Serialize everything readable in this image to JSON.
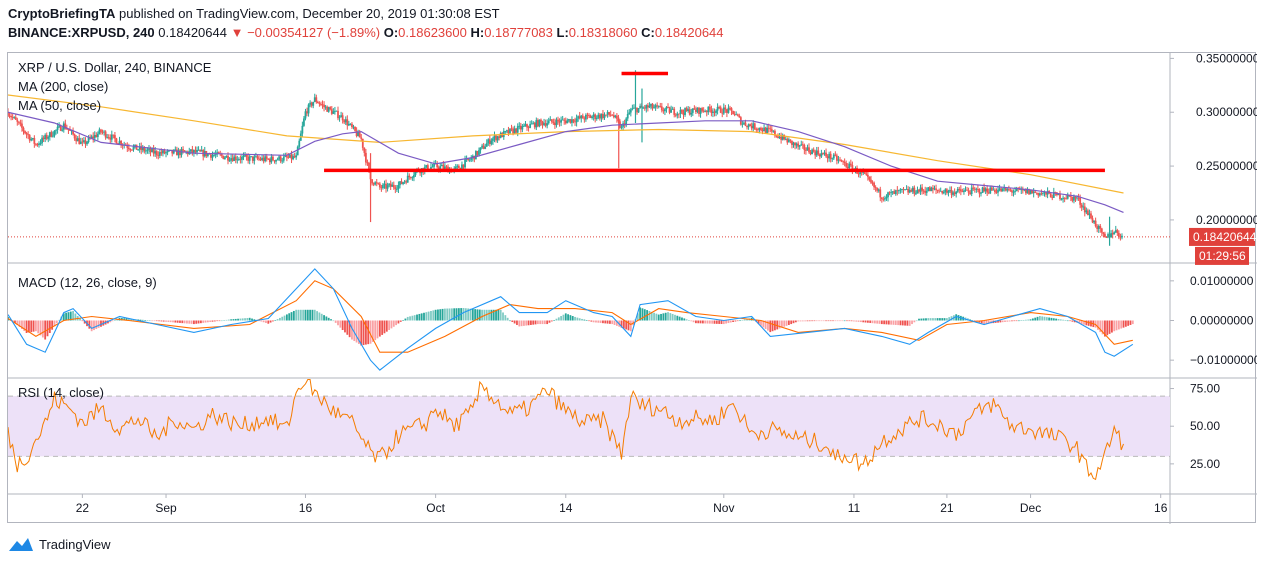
{
  "header": {
    "author": "CryptoBriefingTA",
    "published_text": "published on TradingView.com, December 20, 2019 01:30:08 EST",
    "symbol": "BINANCE:XRPUSD, 240",
    "price": "0.18420644",
    "change": "−0.00354127 (−1.89%)",
    "ohlc": [
      {
        "label": "O:",
        "value": "0.18623600"
      },
      {
        "label": "H:",
        "value": "0.18777083"
      },
      {
        "label": "L:",
        "value": "0.18318060"
      },
      {
        "label": "C:",
        "value": "0.18420644"
      }
    ]
  },
  "footer": {
    "brand": "TradingView"
  },
  "colors": {
    "up": "#26a69a",
    "down": "#ef5350",
    "ma200": "#f7b731",
    "ma50": "#7b5bc4",
    "macd": "#2196f3",
    "signal": "#ff6d00",
    "rsi": "#f57c00",
    "rsi_band": "#ede1f8",
    "annotation": "#ff0000",
    "price_line": "#e0413b"
  },
  "chart_data": [
    {
      "type": "candlestick",
      "title": "XRP / U.S. Dollar, 240, BINANCE",
      "indicators": [
        "MA (200, close)",
        "MA (50, close)"
      ],
      "y_ticks": [
        "0.35000000",
        "0.30000000",
        "0.25000000",
        "0.20000000"
      ],
      "y_tick_values": [
        0.35,
        0.3,
        0.25,
        0.2
      ],
      "ylim": [
        0.16,
        0.355
      ],
      "last_price_label": "0.18420644",
      "countdown_label": "01:29:56",
      "last_price": 0.18420644,
      "x_tick_labels": [
        "22",
        "Sep",
        "16",
        "Oct",
        "14",
        "Nov",
        "11",
        "21",
        "Dec",
        "16"
      ],
      "xlim_days": [
        0,
        125
      ],
      "x_tick_days": [
        8,
        17,
        32,
        46,
        60,
        77,
        91,
        101,
        110,
        124
      ],
      "price_anchors_day_value": [
        [
          0,
          0.3
        ],
        [
          3,
          0.27
        ],
        [
          6,
          0.288
        ],
        [
          8,
          0.27
        ],
        [
          10,
          0.282
        ],
        [
          13,
          0.268
        ],
        [
          16,
          0.262
        ],
        [
          20,
          0.263
        ],
        [
          24,
          0.258
        ],
        [
          28,
          0.256
        ],
        [
          31,
          0.258
        ],
        [
          32,
          0.3
        ],
        [
          33,
          0.312
        ],
        [
          34,
          0.305
        ],
        [
          36,
          0.295
        ],
        [
          38,
          0.275
        ],
        [
          39,
          0.238
        ],
        [
          40,
          0.23
        ],
        [
          42,
          0.232
        ],
        [
          44,
          0.246
        ],
        [
          46,
          0.25
        ],
        [
          48,
          0.246
        ],
        [
          50,
          0.258
        ],
        [
          52,
          0.275
        ],
        [
          54,
          0.282
        ],
        [
          57,
          0.29
        ],
        [
          60,
          0.292
        ],
        [
          62,
          0.295
        ],
        [
          65,
          0.298
        ],
        [
          66,
          0.285
        ],
        [
          67,
          0.302
        ],
        [
          69,
          0.305
        ],
        [
          72,
          0.3
        ],
        [
          75,
          0.302
        ],
        [
          77,
          0.302
        ],
        [
          78,
          0.3
        ],
        [
          79,
          0.29
        ],
        [
          82,
          0.282
        ],
        [
          85,
          0.268
        ],
        [
          89,
          0.257
        ],
        [
          92,
          0.242
        ],
        [
          94,
          0.222
        ],
        [
          96,
          0.226
        ],
        [
          99,
          0.228
        ],
        [
          102,
          0.226
        ],
        [
          106,
          0.228
        ],
        [
          110,
          0.226
        ],
        [
          115,
          0.22
        ],
        [
          117,
          0.196
        ],
        [
          118,
          0.182
        ],
        [
          119,
          0.19
        ],
        [
          120,
          0.184
        ]
      ],
      "ma200_day_value": [
        [
          0,
          0.316
        ],
        [
          10,
          0.305
        ],
        [
          20,
          0.292
        ],
        [
          30,
          0.278
        ],
        [
          40,
          0.272
        ],
        [
          50,
          0.278
        ],
        [
          60,
          0.282
        ],
        [
          70,
          0.284
        ],
        [
          80,
          0.282
        ],
        [
          90,
          0.27
        ],
        [
          100,
          0.255
        ],
        [
          110,
          0.242
        ],
        [
          120,
          0.225
        ]
      ],
      "ma50_day_value": [
        [
          0,
          0.3
        ],
        [
          5,
          0.29
        ],
        [
          10,
          0.272
        ],
        [
          20,
          0.262
        ],
        [
          30,
          0.26
        ],
        [
          33,
          0.273
        ],
        [
          36,
          0.28
        ],
        [
          38,
          0.282
        ],
        [
          40,
          0.272
        ],
        [
          42,
          0.262
        ],
        [
          46,
          0.252
        ],
        [
          50,
          0.258
        ],
        [
          55,
          0.27
        ],
        [
          60,
          0.282
        ],
        [
          65,
          0.288
        ],
        [
          70,
          0.29
        ],
        [
          75,
          0.292
        ],
        [
          80,
          0.292
        ],
        [
          85,
          0.282
        ],
        [
          90,
          0.268
        ],
        [
          95,
          0.25
        ],
        [
          100,
          0.236
        ],
        [
          105,
          0.232
        ],
        [
          110,
          0.228
        ],
        [
          115,
          0.222
        ],
        [
          118,
          0.214
        ],
        [
          120,
          0.207
        ]
      ],
      "annotations": [
        {
          "label": "resistance-line",
          "value": 0.246,
          "from_day": 34,
          "to_day": 118
        },
        {
          "label": "top-mark",
          "value": 0.336,
          "from_day": 66,
          "to_day": 71
        }
      ]
    },
    {
      "type": "line",
      "title": "MACD (12, 26, close, 9)",
      "y_ticks": [
        "0.01000000",
        "0.00000000",
        "−0.01000000"
      ],
      "y_tick_values": [
        0.01,
        0.0,
        -0.01
      ],
      "ylim": [
        -0.0145,
        0.0145
      ],
      "macd_day_value": [
        [
          0,
          0.0015
        ],
        [
          2,
          -0.006
        ],
        [
          4,
          -0.008
        ],
        [
          6,
          0.002
        ],
        [
          7,
          0.003
        ],
        [
          9,
          -0.002
        ],
        [
          12,
          0.001
        ],
        [
          16,
          -0.001
        ],
        [
          20,
          -0.003
        ],
        [
          24,
          -0.001
        ],
        [
          28,
          0.0005
        ],
        [
          31,
          0.008
        ],
        [
          33,
          0.013
        ],
        [
          35,
          0.008
        ],
        [
          37,
          -0.002
        ],
        [
          39,
          -0.01
        ],
        [
          40,
          -0.0125
        ],
        [
          43,
          -0.007
        ],
        [
          46,
          -0.002
        ],
        [
          49,
          0.002
        ],
        [
          53,
          0.006
        ],
        [
          55,
          0.002
        ],
        [
          58,
          0.002
        ],
        [
          60,
          0.005
        ],
        [
          63,
          0.002
        ],
        [
          65,
          0.001
        ],
        [
          67,
          -0.004
        ],
        [
          68,
          0.004
        ],
        [
          71,
          0.005
        ],
        [
          74,
          0.001
        ],
        [
          77,
          0.0
        ],
        [
          80,
          0.001
        ],
        [
          82,
          -0.004
        ],
        [
          86,
          -0.003
        ],
        [
          90,
          -0.002
        ],
        [
          94,
          -0.004
        ],
        [
          97,
          -0.006
        ],
        [
          99,
          -0.003
        ],
        [
          102,
          0.001
        ],
        [
          105,
          -0.001
        ],
        [
          108,
          0.001
        ],
        [
          111,
          0.003
        ],
        [
          114,
          0.001
        ],
        [
          117,
          -0.003
        ],
        [
          118,
          -0.008
        ],
        [
          119,
          -0.009
        ],
        [
          121,
          -0.006
        ]
      ],
      "signal_day_value": [
        [
          0,
          0.0005
        ],
        [
          3,
          -0.004
        ],
        [
          6,
          0.0
        ],
        [
          9,
          0.001
        ],
        [
          13,
          0.0
        ],
        [
          20,
          -0.002
        ],
        [
          26,
          -0.001
        ],
        [
          31,
          0.005
        ],
        [
          33,
          0.01
        ],
        [
          35,
          0.008
        ],
        [
          38,
          0.001
        ],
        [
          40,
          -0.008
        ],
        [
          43,
          -0.008
        ],
        [
          47,
          -0.004
        ],
        [
          51,
          0.001
        ],
        [
          54,
          0.004
        ],
        [
          57,
          0.003
        ],
        [
          61,
          0.003
        ],
        [
          65,
          0.002
        ],
        [
          67,
          -0.001
        ],
        [
          70,
          0.003
        ],
        [
          73,
          0.002
        ],
        [
          77,
          0.001
        ],
        [
          81,
          0.0
        ],
        [
          85,
          -0.003
        ],
        [
          90,
          -0.002
        ],
        [
          94,
          -0.003
        ],
        [
          98,
          -0.005
        ],
        [
          101,
          -0.001
        ],
        [
          105,
          0.0
        ],
        [
          110,
          0.002
        ],
        [
          114,
          0.001
        ],
        [
          117,
          -0.001
        ],
        [
          119,
          -0.006
        ],
        [
          121,
          -0.005
        ]
      ]
    },
    {
      "type": "line",
      "title": "RSI (14, close)",
      "y_ticks": [
        "75.00",
        "50.00",
        "25.00"
      ],
      "y_tick_values": [
        75,
        50,
        25
      ],
      "ylim": [
        5,
        82
      ],
      "band": [
        30,
        70
      ],
      "rsi_day_value": [
        [
          0,
          45
        ],
        [
          1,
          25
        ],
        [
          2,
          30
        ],
        [
          4,
          52
        ],
        [
          5,
          68
        ],
        [
          7,
          60
        ],
        [
          8,
          52
        ],
        [
          10,
          62
        ],
        [
          12,
          48
        ],
        [
          14,
          55
        ],
        [
          16,
          42
        ],
        [
          18,
          55
        ],
        [
          20,
          48
        ],
        [
          22,
          58
        ],
        [
          25,
          50
        ],
        [
          28,
          55
        ],
        [
          30,
          48
        ],
        [
          31,
          72
        ],
        [
          32,
          82
        ],
        [
          33,
          72
        ],
        [
          35,
          60
        ],
        [
          37,
          52
        ],
        [
          39,
          32
        ],
        [
          40,
          28
        ],
        [
          42,
          44
        ],
        [
          45,
          52
        ],
        [
          46,
          62
        ],
        [
          48,
          50
        ],
        [
          50,
          60
        ],
        [
          51,
          78
        ],
        [
          52,
          70
        ],
        [
          54,
          58
        ],
        [
          56,
          62
        ],
        [
          58,
          74
        ],
        [
          60,
          60
        ],
        [
          62,
          52
        ],
        [
          64,
          54
        ],
        [
          66,
          32
        ],
        [
          67,
          70
        ],
        [
          68,
          64
        ],
        [
          70,
          62
        ],
        [
          72,
          54
        ],
        [
          74,
          55
        ],
        [
          76,
          54
        ],
        [
          78,
          65
        ],
        [
          80,
          45
        ],
        [
          82,
          48
        ],
        [
          85,
          42
        ],
        [
          88,
          38
        ],
        [
          89,
          28
        ],
        [
          90,
          32
        ],
        [
          92,
          24
        ],
        [
          94,
          40
        ],
        [
          96,
          48
        ],
        [
          98,
          55
        ],
        [
          100,
          52
        ],
        [
          102,
          45
        ],
        [
          104,
          58
        ],
        [
          106,
          65
        ],
        [
          108,
          50
        ],
        [
          110,
          48
        ],
        [
          112,
          44
        ],
        [
          114,
          40
        ],
        [
          115,
          35
        ],
        [
          116,
          22
        ],
        [
          117,
          18
        ],
        [
          118,
          30
        ],
        [
          119,
          48
        ],
        [
          120,
          36
        ]
      ]
    }
  ]
}
